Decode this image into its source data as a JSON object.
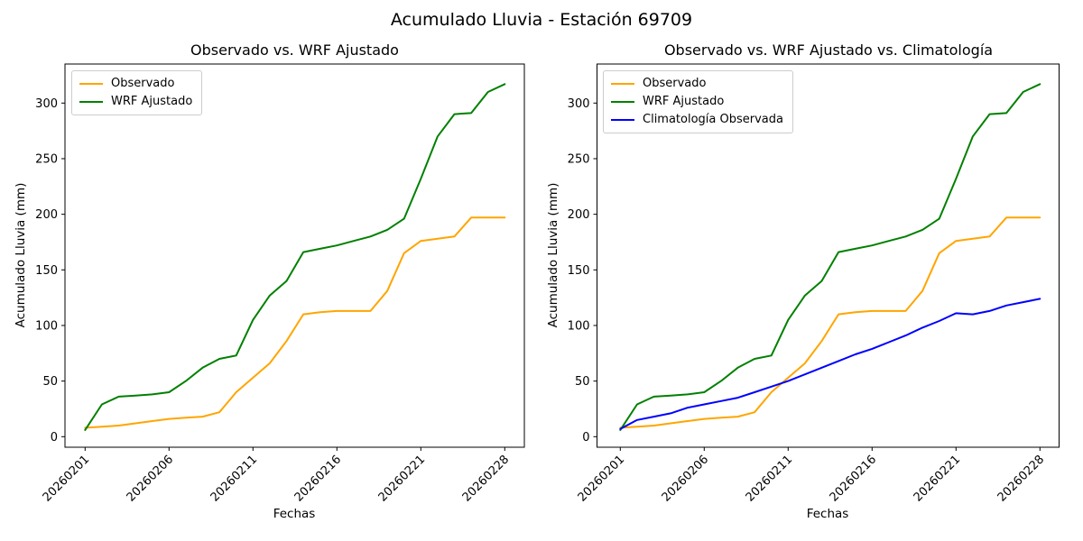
{
  "figure": {
    "suptitle": "Acumulado Lluvia - Estación 69709"
  },
  "chart_data": [
    {
      "type": "line",
      "title": "Observado vs. WRF Ajustado",
      "xlabel": "Fechas",
      "ylabel": "Acumulado Lluvia (mm)",
      "grid": false,
      "legend_position": "upper-left",
      "x_point_count": 26,
      "xticks": {
        "indices": [
          0,
          5,
          10,
          15,
          20,
          25
        ],
        "labels": [
          "20260201",
          "20260206",
          "20260211",
          "20260216",
          "20260221",
          "20260228"
        ]
      },
      "yticks": [
        0,
        50,
        100,
        150,
        200,
        250,
        300
      ],
      "ylim": [
        -10,
        335
      ],
      "series": [
        {
          "name": "Observado",
          "color": "#FFA500",
          "values": [
            8,
            9,
            10,
            12,
            14,
            16,
            17,
            18,
            22,
            40,
            53,
            66,
            86,
            110,
            112,
            113,
            113,
            113,
            131,
            165,
            176,
            178,
            180,
            197,
            197,
            197
          ]
        },
        {
          "name": "WRF Ajustado",
          "color": "#008000",
          "values": [
            6,
            29,
            36,
            37,
            38,
            40,
            50,
            62,
            70,
            73,
            105,
            127,
            140,
            166,
            169,
            172,
            176,
            180,
            186,
            196,
            232,
            270,
            290,
            291,
            310,
            317
          ]
        }
      ]
    },
    {
      "type": "line",
      "title": "Observado vs. WRF Ajustado vs. Climatología",
      "xlabel": "Fechas",
      "ylabel": "Acumulado Lluvia (mm)",
      "grid": false,
      "legend_position": "upper-left",
      "x_point_count": 26,
      "xticks": {
        "indices": [
          0,
          5,
          10,
          15,
          20,
          25
        ],
        "labels": [
          "20260201",
          "20260206",
          "20260211",
          "20260216",
          "20260221",
          "20260228"
        ]
      },
      "yticks": [
        0,
        50,
        100,
        150,
        200,
        250,
        300
      ],
      "ylim": [
        -10,
        335
      ],
      "series": [
        {
          "name": "Observado",
          "color": "#FFA500",
          "values": [
            8,
            9,
            10,
            12,
            14,
            16,
            17,
            18,
            22,
            40,
            53,
            66,
            86,
            110,
            112,
            113,
            113,
            113,
            131,
            165,
            176,
            178,
            180,
            197,
            197,
            197
          ]
        },
        {
          "name": "WRF Ajustado",
          "color": "#008000",
          "values": [
            6,
            29,
            36,
            37,
            38,
            40,
            50,
            62,
            70,
            73,
            105,
            127,
            140,
            166,
            169,
            172,
            176,
            180,
            186,
            196,
            232,
            270,
            290,
            291,
            310,
            317
          ]
        },
        {
          "name": "Climatología Observada",
          "color": "#0000FF",
          "values": [
            7,
            15,
            18,
            21,
            26,
            29,
            32,
            35,
            40,
            45,
            50,
            56,
            62,
            68,
            74,
            79,
            85,
            91,
            98,
            104,
            111,
            110,
            113,
            118,
            121,
            124
          ]
        }
      ]
    }
  ]
}
